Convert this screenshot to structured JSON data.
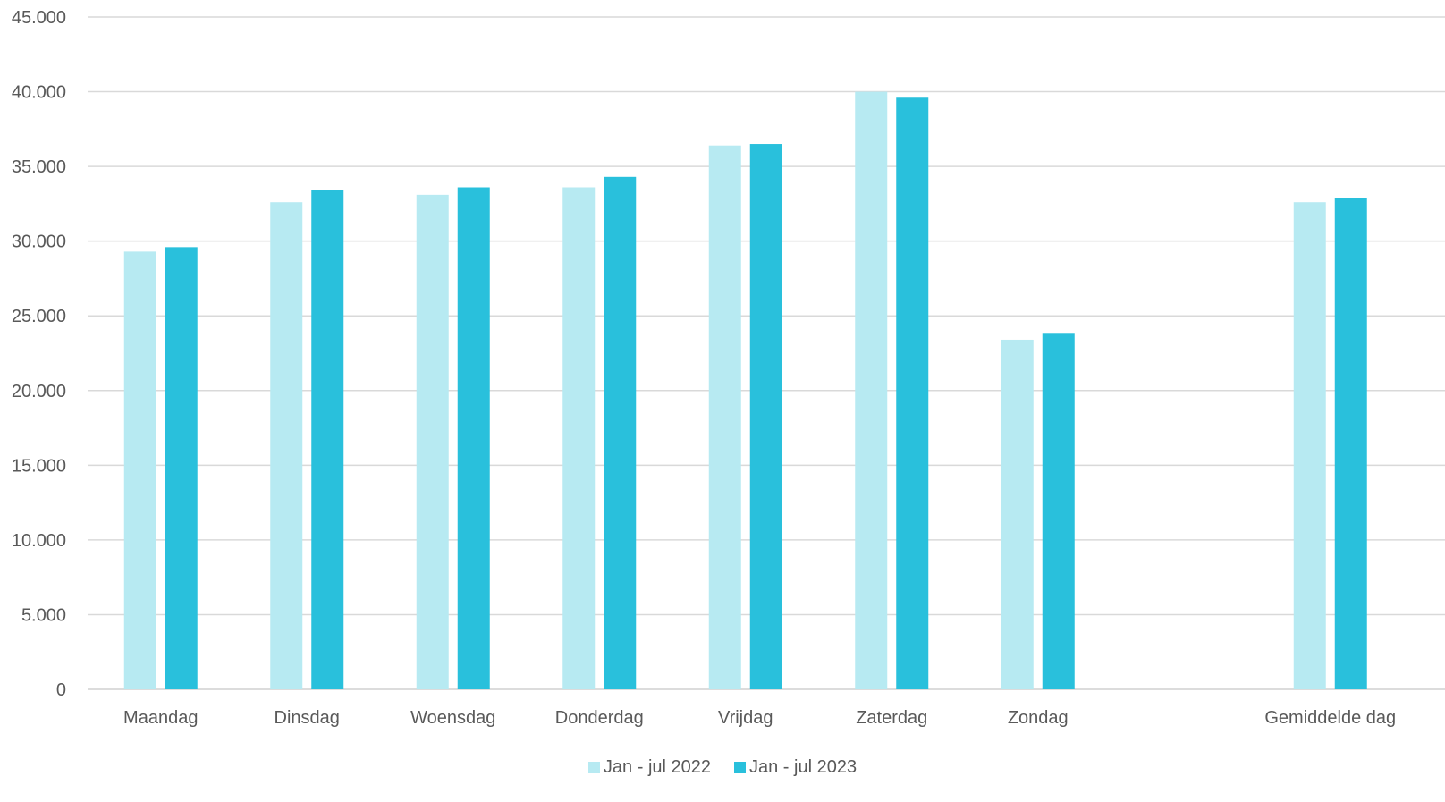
{
  "chart_data": {
    "type": "bar",
    "categories": [
      "Maandag",
      "Dinsdag",
      "Woensdag",
      "Donderdag",
      "Vrijdag",
      "Zaterdag",
      "Zondag",
      "",
      "Gemiddelde dag"
    ],
    "series": [
      {
        "name": "Jan - jul 2022",
        "color": "#b7eaf2",
        "values": [
          29300,
          32600,
          33100,
          33600,
          36400,
          40000,
          23400,
          null,
          32600
        ]
      },
      {
        "name": "Jan - jul 2023",
        "color": "#29c0dc",
        "values": [
          29600,
          33400,
          33600,
          34300,
          36500,
          39600,
          23800,
          null,
          32900
        ]
      }
    ],
    "ylim": [
      0,
      45000
    ],
    "yticks": [
      "0",
      "5.000",
      "10.000",
      "15.000",
      "20.000",
      "25.000",
      "30.000",
      "35.000",
      "40.000",
      "45.000"
    ],
    "ytick_values": [
      0,
      5000,
      10000,
      15000,
      20000,
      25000,
      30000,
      35000,
      40000,
      45000
    ],
    "grid": true,
    "legend_position": "bottom",
    "title": "",
    "xlabel": "",
    "ylabel": ""
  }
}
